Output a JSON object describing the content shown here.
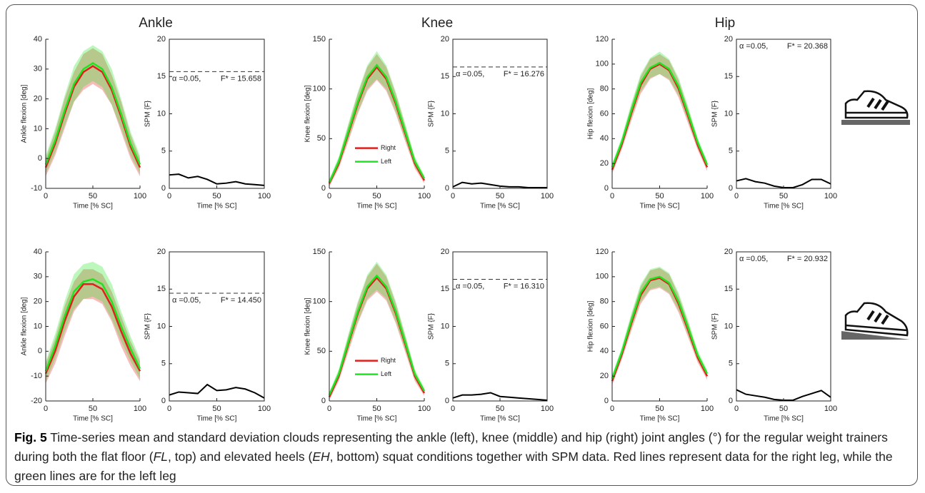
{
  "figure": {
    "column_titles": [
      "Ankle",
      "Knee",
      "Hip"
    ]
  },
  "chart_data": [
    {
      "type": "line",
      "ylabel": "Ankle flexion [deg]",
      "xlabel": "Time [% SC]",
      "xlim": [
        0,
        100
      ],
      "xticks": [
        0,
        50,
        100
      ],
      "ylim": [
        -10,
        40
      ],
      "yticks": [
        -10,
        0,
        10,
        20,
        30,
        40
      ],
      "x": [
        0,
        10,
        20,
        30,
        40,
        50,
        60,
        70,
        80,
        90,
        100
      ],
      "series": [
        {
          "color": "#e0201b",
          "values": [
            -3,
            5,
            15,
            24,
            29,
            31,
            29,
            23,
            14,
            4,
            -3
          ],
          "sd": [
            3,
            4,
            5,
            5,
            6,
            6,
            6,
            5,
            5,
            4,
            3
          ]
        },
        {
          "color": "#22e322",
          "values": [
            -2,
            6,
            16,
            25,
            30,
            32,
            30,
            24,
            15,
            5,
            -2
          ],
          "sd": [
            3,
            4,
            5,
            6,
            6,
            6,
            6,
            6,
            5,
            4,
            3
          ]
        }
      ]
    },
    {
      "type": "line",
      "ylabel": "SPM {F}",
      "xlabel": "Time [% SC]",
      "box": true,
      "xlim": [
        0,
        100
      ],
      "xticks": [
        0,
        50,
        100
      ],
      "ylim": [
        0,
        20
      ],
      "yticks": [
        0,
        5,
        10,
        15,
        20
      ],
      "threshold": 15.658,
      "alpha_label": "α =0.05,",
      "threshold_label": "F* = 15.658",
      "x": [
        0,
        10,
        20,
        30,
        40,
        50,
        60,
        70,
        80,
        90,
        100
      ],
      "series": [
        {
          "color": "#000000",
          "values": [
            1.8,
            1.9,
            1.4,
            1.6,
            1.2,
            0.6,
            0.7,
            0.9,
            0.6,
            0.5,
            0.4
          ]
        }
      ]
    },
    {
      "type": "line",
      "ylabel": "Knee flexion [deg]",
      "xlabel": "Time [% SC]",
      "xlim": [
        0,
        100
      ],
      "xticks": [
        0,
        50,
        100
      ],
      "ylim": [
        0,
        150
      ],
      "yticks": [
        0,
        50,
        100,
        150
      ],
      "legend": "center-left",
      "x": [
        0,
        10,
        20,
        30,
        40,
        50,
        60,
        70,
        80,
        90,
        100
      ],
      "series": [
        {
          "name": "Right",
          "color": "#e0201b",
          "values": [
            5,
            25,
            55,
            85,
            110,
            122,
            110,
            85,
            55,
            25,
            8
          ],
          "sd": [
            3,
            5,
            8,
            10,
            12,
            13,
            12,
            10,
            8,
            5,
            3
          ]
        },
        {
          "name": "Left",
          "color": "#22e322",
          "values": [
            6,
            27,
            57,
            87,
            112,
            124,
            112,
            87,
            57,
            27,
            10
          ],
          "sd": [
            3,
            5,
            8,
            10,
            12,
            14,
            12,
            10,
            8,
            5,
            3
          ]
        }
      ]
    },
    {
      "type": "line",
      "ylabel": "SPM {F}",
      "xlabel": "Time [% SC]",
      "box": true,
      "xlim": [
        0,
        100
      ],
      "xticks": [
        0,
        50,
        100
      ],
      "ylim": [
        0,
        20
      ],
      "yticks": [
        0,
        5,
        10,
        15,
        20
      ],
      "threshold": 16.276,
      "alpha_label": "α =0.05,",
      "threshold_label": "F* = 16.276",
      "x": [
        0,
        10,
        20,
        30,
        40,
        50,
        60,
        70,
        80,
        90,
        100
      ],
      "series": [
        {
          "color": "#000000",
          "values": [
            0.2,
            0.8,
            0.6,
            0.7,
            0.5,
            0.3,
            0.2,
            0.2,
            0.1,
            0.1,
            0.1
          ]
        }
      ]
    },
    {
      "type": "line",
      "ylabel": "Hip flexion [deg]",
      "xlabel": "Time [% SC]",
      "xlim": [
        0,
        100
      ],
      "xticks": [
        0,
        50,
        100
      ],
      "ylim": [
        0,
        120
      ],
      "yticks": [
        0,
        20,
        40,
        60,
        80,
        100,
        120
      ],
      "x": [
        0,
        10,
        20,
        30,
        40,
        50,
        60,
        70,
        80,
        90,
        100
      ],
      "series": [
        {
          "color": "#e0201b",
          "values": [
            15,
            35,
            60,
            83,
            96,
            100,
            95,
            80,
            58,
            35,
            17
          ],
          "sd": [
            3,
            4,
            6,
            7,
            8,
            8,
            8,
            7,
            6,
            4,
            3
          ]
        },
        {
          "color": "#22e322",
          "values": [
            17,
            37,
            62,
            85,
            97,
            101,
            96,
            82,
            60,
            37,
            19
          ],
          "sd": [
            3,
            4,
            6,
            7,
            8,
            9,
            8,
            7,
            6,
            4,
            3
          ]
        }
      ]
    },
    {
      "type": "line",
      "ylabel": "SPM {F}",
      "xlabel": "Time [% SC]",
      "box": true,
      "xlim": [
        0,
        100
      ],
      "xticks": [
        0,
        50,
        100
      ],
      "ylim": [
        0,
        20
      ],
      "yticks": [
        0,
        5,
        10,
        15,
        20
      ],
      "threshold": 20.368,
      "alpha_label": "α =0.05,",
      "threshold_label": "F* = 20.368",
      "x": [
        0,
        10,
        20,
        30,
        40,
        50,
        60,
        70,
        80,
        90,
        100
      ],
      "series": [
        {
          "color": "#000000",
          "values": [
            1.0,
            1.3,
            0.9,
            0.7,
            0.3,
            0.1,
            0.1,
            0.5,
            1.2,
            1.2,
            0.6
          ]
        }
      ]
    },
    {
      "type": "line",
      "ylabel": "Ankle flexion [deg]",
      "xlabel": "Time [% SC]",
      "xlim": [
        0,
        100
      ],
      "xticks": [
        0,
        50,
        100
      ],
      "ylim": [
        -20,
        40
      ],
      "yticks": [
        -20,
        -10,
        0,
        10,
        20,
        30,
        40
      ],
      "x": [
        0,
        10,
        20,
        30,
        40,
        50,
        60,
        70,
        80,
        90,
        100
      ],
      "series": [
        {
          "color": "#e0201b",
          "values": [
            -9,
            0,
            12,
            22,
            27,
            27,
            25,
            18,
            8,
            -1,
            -8
          ],
          "sd": [
            4,
            5,
            6,
            6,
            6,
            6,
            6,
            6,
            6,
            5,
            4
          ]
        },
        {
          "color": "#22e322",
          "values": [
            -8,
            2,
            14,
            24,
            28,
            29,
            27,
            20,
            10,
            1,
            -7
          ],
          "sd": [
            4,
            5,
            6,
            7,
            7,
            7,
            7,
            7,
            6,
            5,
            4
          ]
        }
      ]
    },
    {
      "type": "line",
      "ylabel": "SPM {F}",
      "xlabel": "Time [% SC]",
      "box": true,
      "xlim": [
        0,
        100
      ],
      "xticks": [
        0,
        50,
        100
      ],
      "ylim": [
        0,
        20
      ],
      "yticks": [
        0,
        5,
        10,
        15,
        20
      ],
      "threshold": 14.45,
      "alpha_label": "α =0.05,",
      "threshold_label": "F* = 14.450",
      "x": [
        0,
        10,
        20,
        30,
        40,
        50,
        60,
        70,
        80,
        90,
        100
      ],
      "series": [
        {
          "color": "#000000",
          "values": [
            0.8,
            1.2,
            1.1,
            1.0,
            2.2,
            1.4,
            1.5,
            1.8,
            1.6,
            1.1,
            0.4
          ]
        }
      ]
    },
    {
      "type": "line",
      "ylabel": "Knee flexion [deg]",
      "xlabel": "Time [% SC]",
      "xlim": [
        0,
        100
      ],
      "xticks": [
        0,
        50,
        100
      ],
      "ylim": [
        0,
        150
      ],
      "yticks": [
        0,
        50,
        100,
        150
      ],
      "legend": "center-left",
      "x": [
        0,
        10,
        20,
        30,
        40,
        50,
        60,
        70,
        80,
        90,
        100
      ],
      "series": [
        {
          "name": "Right",
          "color": "#e0201b",
          "values": [
            4,
            25,
            57,
            88,
            113,
            124,
            113,
            88,
            57,
            25,
            8
          ],
          "sd": [
            3,
            5,
            8,
            10,
            12,
            14,
            12,
            10,
            8,
            5,
            3
          ]
        },
        {
          "name": "Left",
          "color": "#22e322",
          "values": [
            6,
            27,
            59,
            90,
            115,
            126,
            115,
            90,
            59,
            27,
            10
          ],
          "sd": [
            3,
            5,
            8,
            10,
            12,
            14,
            12,
            10,
            8,
            5,
            3
          ]
        }
      ]
    },
    {
      "type": "line",
      "ylabel": "SPM {F}",
      "xlabel": "Time [% SC]",
      "box": true,
      "xlim": [
        0,
        100
      ],
      "xticks": [
        0,
        50,
        100
      ],
      "ylim": [
        0,
        20
      ],
      "yticks": [
        0,
        5,
        10,
        15,
        20
      ],
      "threshold": 16.31,
      "alpha_label": "α =0.05,",
      "threshold_label": "F* = 16.310",
      "x": [
        0,
        10,
        20,
        30,
        40,
        50,
        60,
        70,
        80,
        90,
        100
      ],
      "series": [
        {
          "color": "#000000",
          "values": [
            0.4,
            0.8,
            0.8,
            0.9,
            1.1,
            0.6,
            0.5,
            0.4,
            0.3,
            0.2,
            0.1
          ]
        }
      ]
    },
    {
      "type": "line",
      "ylabel": "Hip flexion [deg]",
      "xlabel": "Time [% SC]",
      "xlim": [
        0,
        100
      ],
      "xticks": [
        0,
        50,
        100
      ],
      "ylim": [
        0,
        120
      ],
      "yticks": [
        0,
        20,
        40,
        60,
        80,
        100,
        120
      ],
      "x": [
        0,
        10,
        20,
        30,
        40,
        50,
        60,
        70,
        80,
        90,
        100
      ],
      "series": [
        {
          "color": "#e0201b",
          "values": [
            16,
            37,
            62,
            85,
            97,
            99,
            94,
            78,
            57,
            35,
            20
          ],
          "sd": [
            3,
            4,
            6,
            7,
            8,
            8,
            8,
            7,
            6,
            4,
            3
          ]
        },
        {
          "color": "#22e322",
          "values": [
            18,
            39,
            64,
            87,
            98,
            100,
            95,
            80,
            59,
            37,
            22
          ],
          "sd": [
            3,
            4,
            6,
            7,
            8,
            8,
            8,
            7,
            6,
            4,
            3
          ]
        }
      ]
    },
    {
      "type": "line",
      "ylabel": "SPM {F}",
      "xlabel": "Time [% SC]",
      "box": true,
      "xlim": [
        0,
        100
      ],
      "xticks": [
        0,
        50,
        100
      ],
      "ylim": [
        0,
        20
      ],
      "yticks": [
        0,
        5,
        10,
        15,
        20
      ],
      "threshold": 20.932,
      "alpha_label": "α =0.05,",
      "threshold_label": "F* = 20.932",
      "x": [
        0,
        10,
        20,
        30,
        40,
        50,
        60,
        70,
        80,
        90,
        100
      ],
      "series": [
        {
          "color": "#000000",
          "values": [
            1.5,
            0.9,
            0.7,
            0.5,
            0.2,
            0.1,
            0.1,
            0.6,
            1.0,
            1.4,
            0.5
          ]
        }
      ]
    }
  ],
  "caption": {
    "label": "Fig. 5",
    "text": [
      " Time-series mean and standard deviation clouds representing the ankle (left), knee (middle) and hip (right) joint angles (°) for the regular weight trainers during both the flat floor (",
      "FL",
      ", top) and elevated heels (",
      "EH",
      ", bottom) squat conditions together with SPM data. Red lines represent data for the right leg, while the green lines are for the left leg"
    ]
  }
}
